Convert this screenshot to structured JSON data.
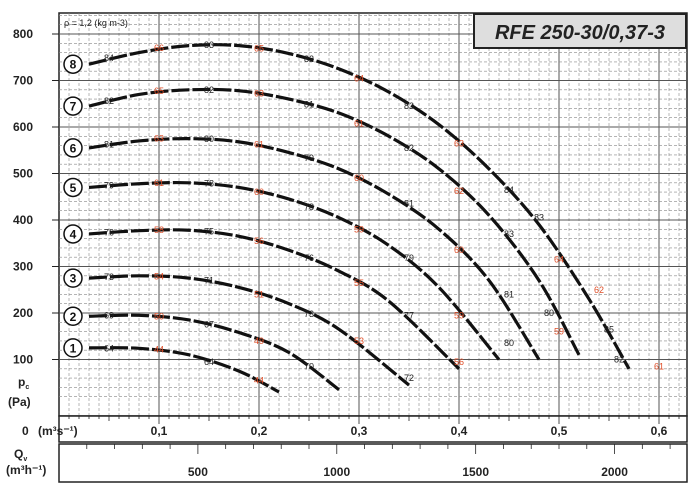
{
  "title": "RFE 250-30/0,37-3",
  "density_note": "ρ = 1,2 (kg m-3)",
  "y_axis": {
    "label": "pc",
    "label_sub": "c",
    "unit": "(Pa)",
    "ticks": [
      "100",
      "200",
      "300",
      "400",
      "500",
      "600",
      "700",
      "800"
    ]
  },
  "x_axis_primary": {
    "zero_label": "0",
    "unit": "(m³s⁻¹)",
    "ticks": [
      "0,1",
      "0,2",
      "0,3",
      "0,4",
      "0,5",
      "0,6"
    ]
  },
  "x_axis_secondary": {
    "label": "Qv",
    "unit": "(m³h⁻¹)",
    "ticks": [
      "500",
      "1000",
      "1500",
      "2000"
    ]
  },
  "chart_data": {
    "type": "line",
    "title": "RFE 250-30/0,37-3",
    "xlabel": "Qv (m³s⁻¹)",
    "ylabel": "pc (Pa)",
    "xlim": [
      0,
      0.62
    ],
    "ylim": [
      0,
      840
    ],
    "grid": true,
    "series": [
      {
        "name": "1",
        "x": [
          0.03,
          0.08,
          0.13,
          0.18,
          0.22
        ],
        "y": [
          125,
          124,
          110,
          75,
          30
        ],
        "black_labels": [
          {
            "text": "64",
            "x": 0.05,
            "y": 124
          },
          {
            "text": "64",
            "x": 0.15,
            "y": 95
          }
        ],
        "orange_labels": [
          {
            "text": "44",
            "x": 0.1,
            "y": 122
          },
          {
            "text": "44",
            "x": 0.2,
            "y": 55
          }
        ]
      },
      {
        "name": "2",
        "x": [
          0.03,
          0.08,
          0.13,
          0.18,
          0.23,
          0.28
        ],
        "y": [
          193,
          195,
          185,
          158,
          115,
          35
        ],
        "black_labels": [
          {
            "text": "69",
            "x": 0.05,
            "y": 195
          },
          {
            "text": "67",
            "x": 0.15,
            "y": 175
          },
          {
            "text": "70",
            "x": 0.25,
            "y": 85
          }
        ],
        "orange_labels": [
          {
            "text": "50",
            "x": 0.1,
            "y": 193
          },
          {
            "text": "49",
            "x": 0.2,
            "y": 140
          }
        ]
      },
      {
        "name": "3",
        "x": [
          0.03,
          0.08,
          0.13,
          0.18,
          0.23,
          0.28,
          0.35
        ],
        "y": [
          275,
          280,
          275,
          255,
          220,
          165,
          45
        ],
        "black_labels": [
          {
            "text": "73",
            "x": 0.05,
            "y": 277
          },
          {
            "text": "71",
            "x": 0.15,
            "y": 270
          },
          {
            "text": "73",
            "x": 0.25,
            "y": 198
          },
          {
            "text": "72",
            "x": 0.35,
            "y": 60
          }
        ],
        "orange_labels": [
          {
            "text": "54",
            "x": 0.1,
            "y": 278
          },
          {
            "text": "51",
            "x": 0.2,
            "y": 240
          },
          {
            "text": "53",
            "x": 0.3,
            "y": 140
          }
        ]
      },
      {
        "name": "4",
        "x": [
          0.03,
          0.08,
          0.13,
          0.18,
          0.23,
          0.28,
          0.33,
          0.4
        ],
        "y": [
          370,
          377,
          378,
          365,
          335,
          290,
          225,
          80
        ],
        "black_labels": [
          {
            "text": "76",
            "x": 0.05,
            "y": 373
          },
          {
            "text": "75",
            "x": 0.15,
            "y": 375
          },
          {
            "text": "76",
            "x": 0.25,
            "y": 318
          },
          {
            "text": "77",
            "x": 0.35,
            "y": 195
          }
        ],
        "orange_labels": [
          {
            "text": "58",
            "x": 0.1,
            "y": 378
          },
          {
            "text": "56",
            "x": 0.2,
            "y": 355
          },
          {
            "text": "55",
            "x": 0.3,
            "y": 265
          },
          {
            "text": "56",
            "x": 0.4,
            "y": 95
          }
        ]
      },
      {
        "name": "5",
        "x": [
          0.03,
          0.08,
          0.13,
          0.18,
          0.23,
          0.28,
          0.33,
          0.38,
          0.44
        ],
        "y": [
          470,
          478,
          480,
          470,
          445,
          405,
          345,
          255,
          100
        ],
        "black_labels": [
          {
            "text": "79",
            "x": 0.05,
            "y": 474
          },
          {
            "text": "78",
            "x": 0.15,
            "y": 478
          },
          {
            "text": "78",
            "x": 0.25,
            "y": 428
          },
          {
            "text": "79",
            "x": 0.35,
            "y": 318
          },
          {
            "text": "80",
            "x": 0.45,
            "y": 135
          }
        ],
        "orange_labels": [
          {
            "text": "61",
            "x": 0.1,
            "y": 480
          },
          {
            "text": "60",
            "x": 0.2,
            "y": 460
          },
          {
            "text": "59",
            "x": 0.3,
            "y": 380
          },
          {
            "text": "59",
            "x": 0.4,
            "y": 195
          }
        ]
      },
      {
        "name": "6",
        "x": [
          0.03,
          0.08,
          0.13,
          0.18,
          0.23,
          0.28,
          0.33,
          0.38,
          0.43,
          0.48
        ],
        "y": [
          555,
          570,
          575,
          568,
          545,
          510,
          455,
          380,
          270,
          100
        ],
        "black_labels": [
          {
            "text": "81",
            "x": 0.05,
            "y": 562
          },
          {
            "text": "80",
            "x": 0.15,
            "y": 574
          },
          {
            "text": "79",
            "x": 0.25,
            "y": 533
          },
          {
            "text": "81",
            "x": 0.35,
            "y": 435
          },
          {
            "text": "81",
            "x": 0.45,
            "y": 240
          }
        ],
        "orange_labels": [
          {
            "text": "63",
            "x": 0.1,
            "y": 575
          },
          {
            "text": "61",
            "x": 0.2,
            "y": 562
          },
          {
            "text": "60",
            "x": 0.3,
            "y": 490
          },
          {
            "text": "60",
            "x": 0.4,
            "y": 335
          }
        ]
      },
      {
        "name": "7",
        "x": [
          0.03,
          0.08,
          0.13,
          0.18,
          0.23,
          0.28,
          0.33,
          0.38,
          0.43,
          0.48,
          0.52
        ],
        "y": [
          645,
          670,
          680,
          678,
          660,
          630,
          580,
          510,
          410,
          270,
          110
        ],
        "black_labels": [
          {
            "text": "82",
            "x": 0.05,
            "y": 656
          },
          {
            "text": "82",
            "x": 0.15,
            "y": 680
          },
          {
            "text": "81",
            "x": 0.25,
            "y": 648
          },
          {
            "text": "82",
            "x": 0.35,
            "y": 555
          },
          {
            "text": "83",
            "x": 0.45,
            "y": 370
          },
          {
            "text": "80",
            "x": 0.49,
            "y": 200
          }
        ],
        "orange_labels": [
          {
            "text": "65",
            "x": 0.1,
            "y": 677
          },
          {
            "text": "63",
            "x": 0.2,
            "y": 672
          },
          {
            "text": "61",
            "x": 0.3,
            "y": 608
          },
          {
            "text": "62",
            "x": 0.4,
            "y": 462
          },
          {
            "text": "59",
            "x": 0.5,
            "y": 160
          }
        ]
      },
      {
        "name": "8",
        "x": [
          0.03,
          0.08,
          0.13,
          0.18,
          0.23,
          0.28,
          0.33,
          0.38,
          0.43,
          0.48,
          0.53,
          0.57
        ],
        "y": [
          735,
          760,
          775,
          775,
          758,
          725,
          675,
          605,
          510,
          390,
          230,
          80
        ],
        "black_labels": [
          {
            "text": "84",
            "x": 0.05,
            "y": 748
          },
          {
            "text": "83",
            "x": 0.15,
            "y": 776
          },
          {
            "text": "82",
            "x": 0.25,
            "y": 746
          },
          {
            "text": "83",
            "x": 0.35,
            "y": 645
          },
          {
            "text": "84",
            "x": 0.45,
            "y": 465
          },
          {
            "text": "83",
            "x": 0.48,
            "y": 405
          },
          {
            "text": "85",
            "x": 0.55,
            "y": 165
          },
          {
            "text": "82",
            "x": 0.56,
            "y": 100
          }
        ],
        "orange_labels": [
          {
            "text": "66",
            "x": 0.1,
            "y": 770
          },
          {
            "text": "65",
            "x": 0.2,
            "y": 769
          },
          {
            "text": "64",
            "x": 0.3,
            "y": 704
          },
          {
            "text": "63",
            "x": 0.4,
            "y": 565
          },
          {
            "text": "64",
            "x": 0.5,
            "y": 315
          },
          {
            "text": "62",
            "x": 0.54,
            "y": 250
          },
          {
            "text": "61",
            "x": 0.6,
            "y": 85
          }
        ]
      }
    ]
  }
}
